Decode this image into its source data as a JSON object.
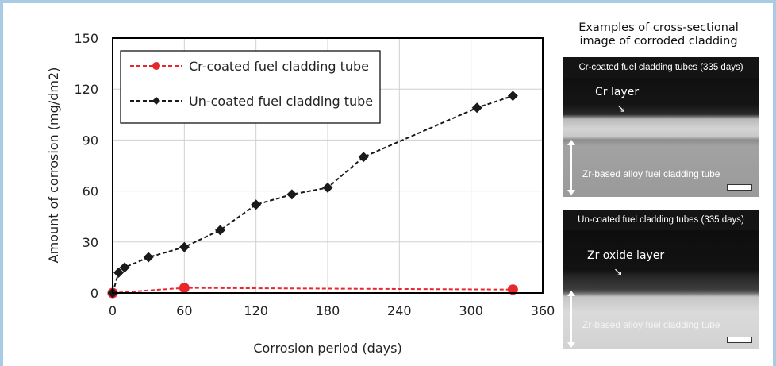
{
  "chart_data": {
    "type": "line",
    "xlabel": "Corrosion period (days)",
    "ylabel": "Amount of corrosion (mg/dm2)",
    "xlim": [
      0,
      360
    ],
    "ylim": [
      0,
      150
    ],
    "xticks": [
      0,
      60,
      120,
      180,
      240,
      300,
      360
    ],
    "yticks": [
      0,
      30,
      60,
      90,
      120,
      150
    ],
    "grid": true,
    "legend_position": "top-left",
    "series": [
      {
        "name": "Cr-coated fuel cladding tube",
        "color": "#e8262c",
        "marker": "circle",
        "line_style": "dashed",
        "x": [
          0,
          60,
          335
        ],
        "y": [
          0,
          3,
          2
        ]
      },
      {
        "name": "Un-coated fuel cladding tube",
        "color": "#1a1a1a",
        "marker": "diamond",
        "line_style": "dashed",
        "x": [
          0,
          5,
          10,
          30,
          60,
          90,
          120,
          150,
          180,
          210,
          305,
          335
        ],
        "y": [
          0,
          12,
          15,
          21,
          27,
          37,
          52,
          58,
          62,
          80,
          109,
          116
        ]
      }
    ]
  },
  "side": {
    "title_line1": "Examples of cross-sectional",
    "title_line2": "image of corroded cladding",
    "panel1": {
      "caption": "Cr-coated fuel cladding tubes (335 days)",
      "layer_label": "Cr layer",
      "alloy_label": "Zr-based alloy fuel cladding tube"
    },
    "panel2": {
      "caption": "Un-coated fuel cladding tubes (335 days)",
      "layer_label": "Zr oxide layer",
      "alloy_label": "Zr-based alloy fuel cladding tube"
    }
  }
}
